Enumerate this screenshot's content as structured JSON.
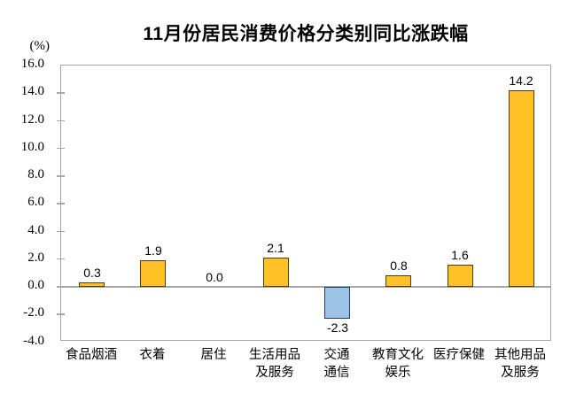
{
  "chart_data": {
    "type": "bar",
    "title": "11月份居民消费价格分类别同比涨跌幅",
    "ylabel": "(%)",
    "categories": [
      "食品烟酒",
      "衣着",
      "居住",
      "生活用品及服务",
      "交通通信",
      "教育文化娱乐",
      "医疗保健",
      "其他用品及服务"
    ],
    "category_lines": [
      [
        "食品烟酒"
      ],
      [
        "衣着"
      ],
      [
        "居住"
      ],
      [
        "生活用品",
        "及服务"
      ],
      [
        "交通",
        "通信"
      ],
      [
        "教育文化",
        "娱乐"
      ],
      [
        "医疗保健"
      ],
      [
        "其他用品",
        "及服务"
      ]
    ],
    "values": [
      0.3,
      1.9,
      0.0,
      2.1,
      -2.3,
      0.8,
      1.6,
      14.2
    ],
    "value_labels": [
      "0.3",
      "1.9",
      "0.0",
      "2.1",
      "-2.3",
      "0.8",
      "1.6",
      "14.2"
    ],
    "ylim": [
      -4.0,
      16.0
    ],
    "ytick_step": 2.0,
    "ytick_labels": [
      "16.0",
      "14.0",
      "12.0",
      "10.0",
      "8.0",
      "6.0",
      "4.0",
      "2.0",
      "0.0",
      "-2.0",
      "-4.0"
    ],
    "grid": false,
    "legend": "none",
    "colors": {
      "positive_fill": "#FFC125",
      "positive_border": "#4A3B10",
      "negative_fill": "#9DC3E6",
      "negative_border": "#1F3864",
      "axis": "#A6A6A6",
      "text": "#000000",
      "background": "#FFFFFF"
    }
  }
}
